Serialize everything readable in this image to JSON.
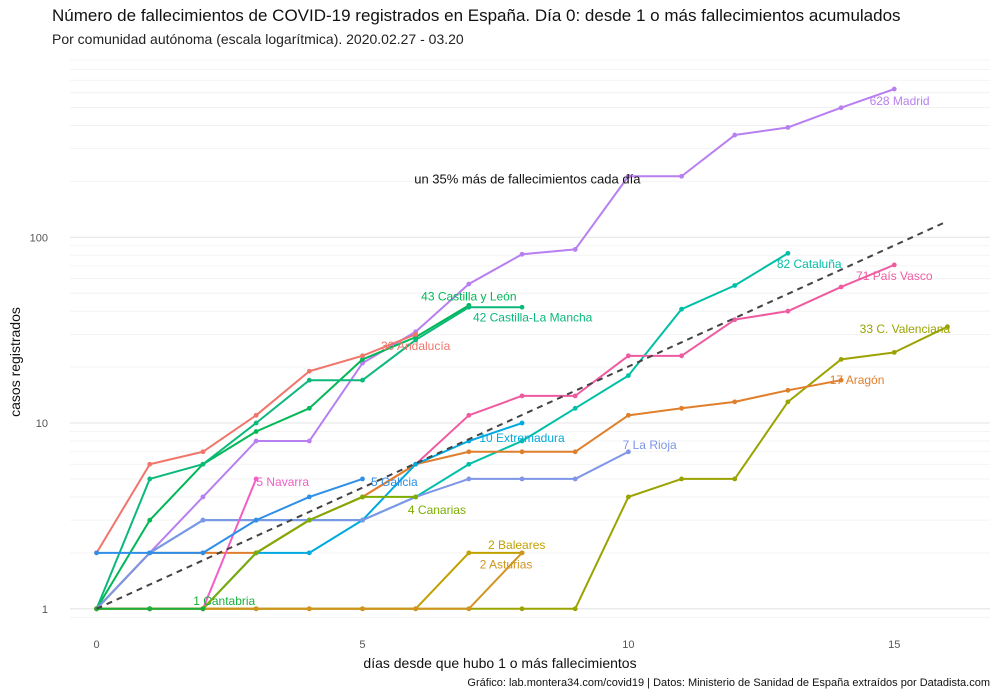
{
  "title": "Número de fallecimientos de COVID-19 registrados en España. Día 0: desde 1 o más fallecimientos acumulados",
  "subtitle": "Por comunidad autónoma (escala logarítmica). 2020.02.27 - 03.20",
  "caption": "Gráfico: lab.montera34.com/covid19 | Datos: Ministerio de Sanidad de España extraídos por Datadista.com",
  "chart_data": {
    "type": "line",
    "xlabel": "días desde que hubo 1 o más fallecimientos",
    "ylabel": "casos registrados",
    "x_ticks": [
      0,
      5,
      10,
      15
    ],
    "y_ticks": [
      1,
      10,
      100
    ],
    "y_tick_labels": [
      "1",
      "10",
      "100"
    ],
    "y_scale": "log",
    "xlim": [
      -0.5,
      16.8
    ],
    "ylim": [
      0.87,
      900
    ],
    "grid": true,
    "annotation": {
      "text": "un 35% más de fallecimientos cada día",
      "x": 8.1,
      "y": 195
    },
    "trend": {
      "x": [
        0,
        16
      ],
      "y": [
        1,
        122
      ],
      "style": "dashed",
      "color": "#444444"
    },
    "series": [
      {
        "name": "628 Madrid",
        "color": "#b87ff0",
        "x": [
          0,
          1,
          2,
          3,
          4,
          5,
          6,
          7,
          8,
          9,
          10,
          11,
          12,
          13,
          14,
          15
        ],
        "y": [
          1,
          2,
          4,
          8,
          8,
          21,
          31,
          56,
          81,
          86,
          213,
          213,
          355,
          390,
          498,
          628
        ]
      },
      {
        "name": "82 Cataluña",
        "color": "#00bfa8",
        "x": [
          0,
          1,
          2,
          3,
          4,
          5,
          6,
          7,
          8,
          9,
          10,
          11,
          12,
          13
        ],
        "y": [
          1,
          2,
          3,
          3,
          3,
          3,
          4,
          6,
          8,
          12,
          18,
          41,
          55,
          82
        ]
      },
      {
        "name": "71 País Vasco",
        "color": "#ef5ba1",
        "x": [
          0,
          1,
          2,
          3,
          4,
          5,
          6,
          7,
          8,
          9,
          10,
          11,
          12,
          13,
          14,
          15
        ],
        "y": [
          1,
          1,
          1,
          2,
          3,
          4,
          6,
          11,
          14,
          14,
          23,
          23,
          36,
          40,
          54,
          71
        ]
      },
      {
        "name": "43 Castilla y León",
        "color": "#00b856",
        "x": [
          0,
          1,
          2,
          3,
          4,
          5,
          6,
          7
        ],
        "y": [
          1,
          3,
          6,
          9,
          12,
          22,
          29,
          43
        ]
      },
      {
        "name": "42 Castilla-La Mancha",
        "color": "#0cb87a",
        "x": [
          0,
          1,
          2,
          3,
          4,
          5,
          6,
          7,
          8
        ],
        "y": [
          1,
          5,
          6,
          10,
          17,
          17,
          28,
          42,
          42
        ]
      },
      {
        "name": "30 Andalucía",
        "color": "#f0756b",
        "x": [
          0,
          1,
          2,
          3,
          4,
          5,
          6
        ],
        "y": [
          2,
          6,
          7,
          11,
          19,
          23,
          30
        ]
      },
      {
        "name": "33 C. Valenciana",
        "color": "#9aa300",
        "x": [
          0,
          1,
          2,
          3,
          4,
          5,
          6,
          7,
          8,
          9,
          10,
          11,
          12,
          13,
          14,
          15,
          16
        ],
        "y": [
          1,
          1,
          1,
          1,
          1,
          1,
          1,
          1,
          1,
          1,
          4,
          5,
          5,
          13,
          22,
          24,
          33
        ]
      },
      {
        "name": "17 Aragón",
        "color": "#e07f2b",
        "x": [
          0,
          1,
          2,
          3,
          4,
          5,
          6,
          7,
          8,
          9,
          10,
          11,
          12,
          13,
          14
        ],
        "y": [
          1,
          2,
          2,
          2,
          3,
          4,
          6,
          7,
          7,
          7,
          11,
          12,
          13,
          15,
          17
        ]
      },
      {
        "name": "10 Extremadura",
        "color": "#00a9e0",
        "x": [
          0,
          1,
          2,
          3,
          4,
          5,
          6,
          7,
          8
        ],
        "y": [
          1,
          1,
          1,
          2,
          2,
          3,
          6,
          8,
          10
        ]
      },
      {
        "name": "7 La Rioja",
        "color": "#7f95e8",
        "x": [
          0,
          1,
          2,
          3,
          4,
          5,
          6,
          7,
          8,
          9,
          10
        ],
        "y": [
          1,
          2,
          3,
          3,
          3,
          3,
          4,
          5,
          5,
          5,
          7
        ]
      },
      {
        "name": "5 Navarra",
        "color": "#f25ec6",
        "x": [
          0,
          1,
          2,
          3
        ],
        "y": [
          1,
          1,
          1,
          5
        ]
      },
      {
        "name": "5 Galicia",
        "color": "#2e8ee8",
        "x": [
          0,
          1,
          2,
          3,
          4,
          5
        ],
        "y": [
          2,
          2,
          2,
          3,
          4,
          5
        ]
      },
      {
        "name": "4 Canarias",
        "color": "#7cad00",
        "x": [
          0,
          1,
          2,
          3,
          4,
          5,
          6
        ],
        "y": [
          1,
          1,
          1,
          2,
          3,
          4,
          4
        ]
      },
      {
        "name": "2 Baleares",
        "color": "#c2a000",
        "x": [
          0,
          1,
          2,
          3,
          4,
          5,
          6,
          7,
          8
        ],
        "y": [
          1,
          1,
          1,
          1,
          1,
          1,
          1,
          2,
          2
        ]
      },
      {
        "name": "2 Asturias",
        "color": "#d09520",
        "x": [
          0,
          1,
          2,
          3,
          4,
          5,
          6,
          7,
          8
        ],
        "y": [
          1,
          1,
          1,
          1,
          1,
          1,
          1,
          1,
          2
        ]
      },
      {
        "name": "1 Cantabria",
        "color": "#1aaf3e",
        "x": [
          0,
          1,
          2
        ],
        "y": [
          1,
          1,
          1
        ]
      }
    ],
    "labels": [
      {
        "text": "628 Madrid",
        "x": 15.1,
        "y": 540,
        "anchor": "end-ish",
        "color": "#b87ff0"
      },
      {
        "text": "82 Cataluña",
        "x": 13.4,
        "y": 72,
        "color": "#00bfa8"
      },
      {
        "text": "71 País Vasco",
        "x": 15.0,
        "y": 62,
        "color": "#ef5ba1"
      },
      {
        "text": "43 Castilla y León",
        "x": 7.0,
        "y": 48,
        "color": "#00b856"
      },
      {
        "text": "42 Castilla-La Mancha",
        "x": 8.2,
        "y": 37,
        "color": "#0cb87a"
      },
      {
        "text": "30 Andalucía",
        "x": 6.0,
        "y": 26,
        "color": "#f0756b"
      },
      {
        "text": "33 C. Valenciana",
        "x": 15.2,
        "y": 32,
        "color": "#9aa300"
      },
      {
        "text": "17 Aragón",
        "x": 14.3,
        "y": 17,
        "color": "#e07f2b"
      },
      {
        "text": "10 Extremadura",
        "x": 8.0,
        "y": 8.3,
        "color": "#00a9e0"
      },
      {
        "text": "7 La Rioja",
        "x": 10.4,
        "y": 7.6,
        "color": "#7f95e8"
      },
      {
        "text": "5 Navarra",
        "x": 3.5,
        "y": 4.8,
        "color": "#f25ec6"
      },
      {
        "text": "5 Galicia",
        "x": 5.6,
        "y": 4.8,
        "color": "#2e8ee8"
      },
      {
        "text": "4 Canarias",
        "x": 6.4,
        "y": 3.4,
        "color": "#7cad00"
      },
      {
        "text": "2 Baleares",
        "x": 7.9,
        "y": 2.2,
        "color": "#c2a000"
      },
      {
        "text": "2 Asturias",
        "x": 7.7,
        "y": 1.73,
        "color": "#d09520"
      },
      {
        "text": "1 Cantabria",
        "x": 2.4,
        "y": 1.1,
        "color": "#1aaf3e"
      }
    ]
  }
}
